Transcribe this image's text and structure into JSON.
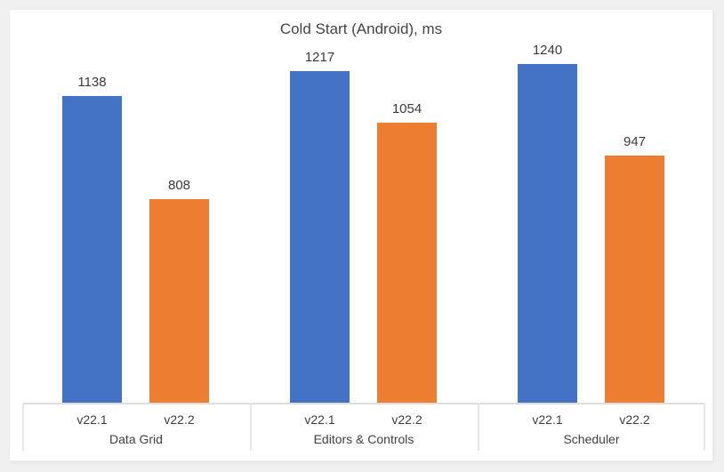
{
  "chart_data": {
    "type": "bar",
    "title": "Cold Start (Android), ms",
    "categories": [
      "Data Grid",
      "Editors & Controls",
      "Scheduler"
    ],
    "series": [
      {
        "name": "v22.1",
        "color": "#4472c4",
        "values": [
          1138,
          1217,
          1240
        ]
      },
      {
        "name": "v22.2",
        "color": "#ed7d31",
        "values": [
          808,
          1054,
          947
        ]
      }
    ],
    "data_labels": [
      [
        1138,
        1217,
        1240
      ],
      [
        808,
        1054,
        947
      ]
    ],
    "xlabel": "",
    "ylabel": "",
    "ylim": [
      160,
      1300
    ],
    "y_axis_visible": false,
    "grid": false,
    "legend": "none",
    "axis_line_color": "#dedede"
  },
  "colors": {
    "page_background": "#f0f0f0",
    "card_background": "#ffffff",
    "text": "#404040",
    "title_text": "#444444",
    "separator": "#e7e7e7"
  }
}
